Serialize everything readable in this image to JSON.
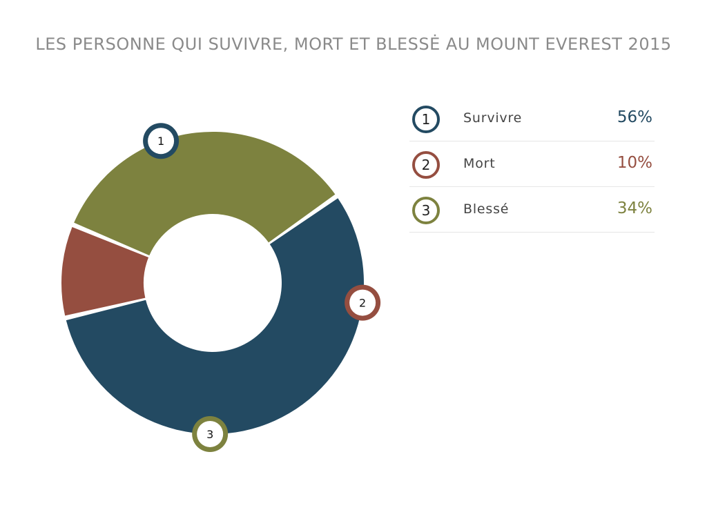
{
  "chart_data": {
    "type": "pie",
    "variant": "donut",
    "title": "LES PERSONNE QUI SUVIVRE, MORT ET BLESSĖ AU MOUNT EVEREST 2015",
    "categories": [
      "Survivre",
      "Mort",
      "Blessé"
    ],
    "values": [
      56,
      10,
      34
    ],
    "value_labels": [
      "56%",
      "10%",
      "34%"
    ],
    "slice_markers": [
      "1",
      "2",
      "3"
    ],
    "colors": [
      "#234A62",
      "#954E40",
      "#7D823F"
    ],
    "legend_placement": "right"
  }
}
